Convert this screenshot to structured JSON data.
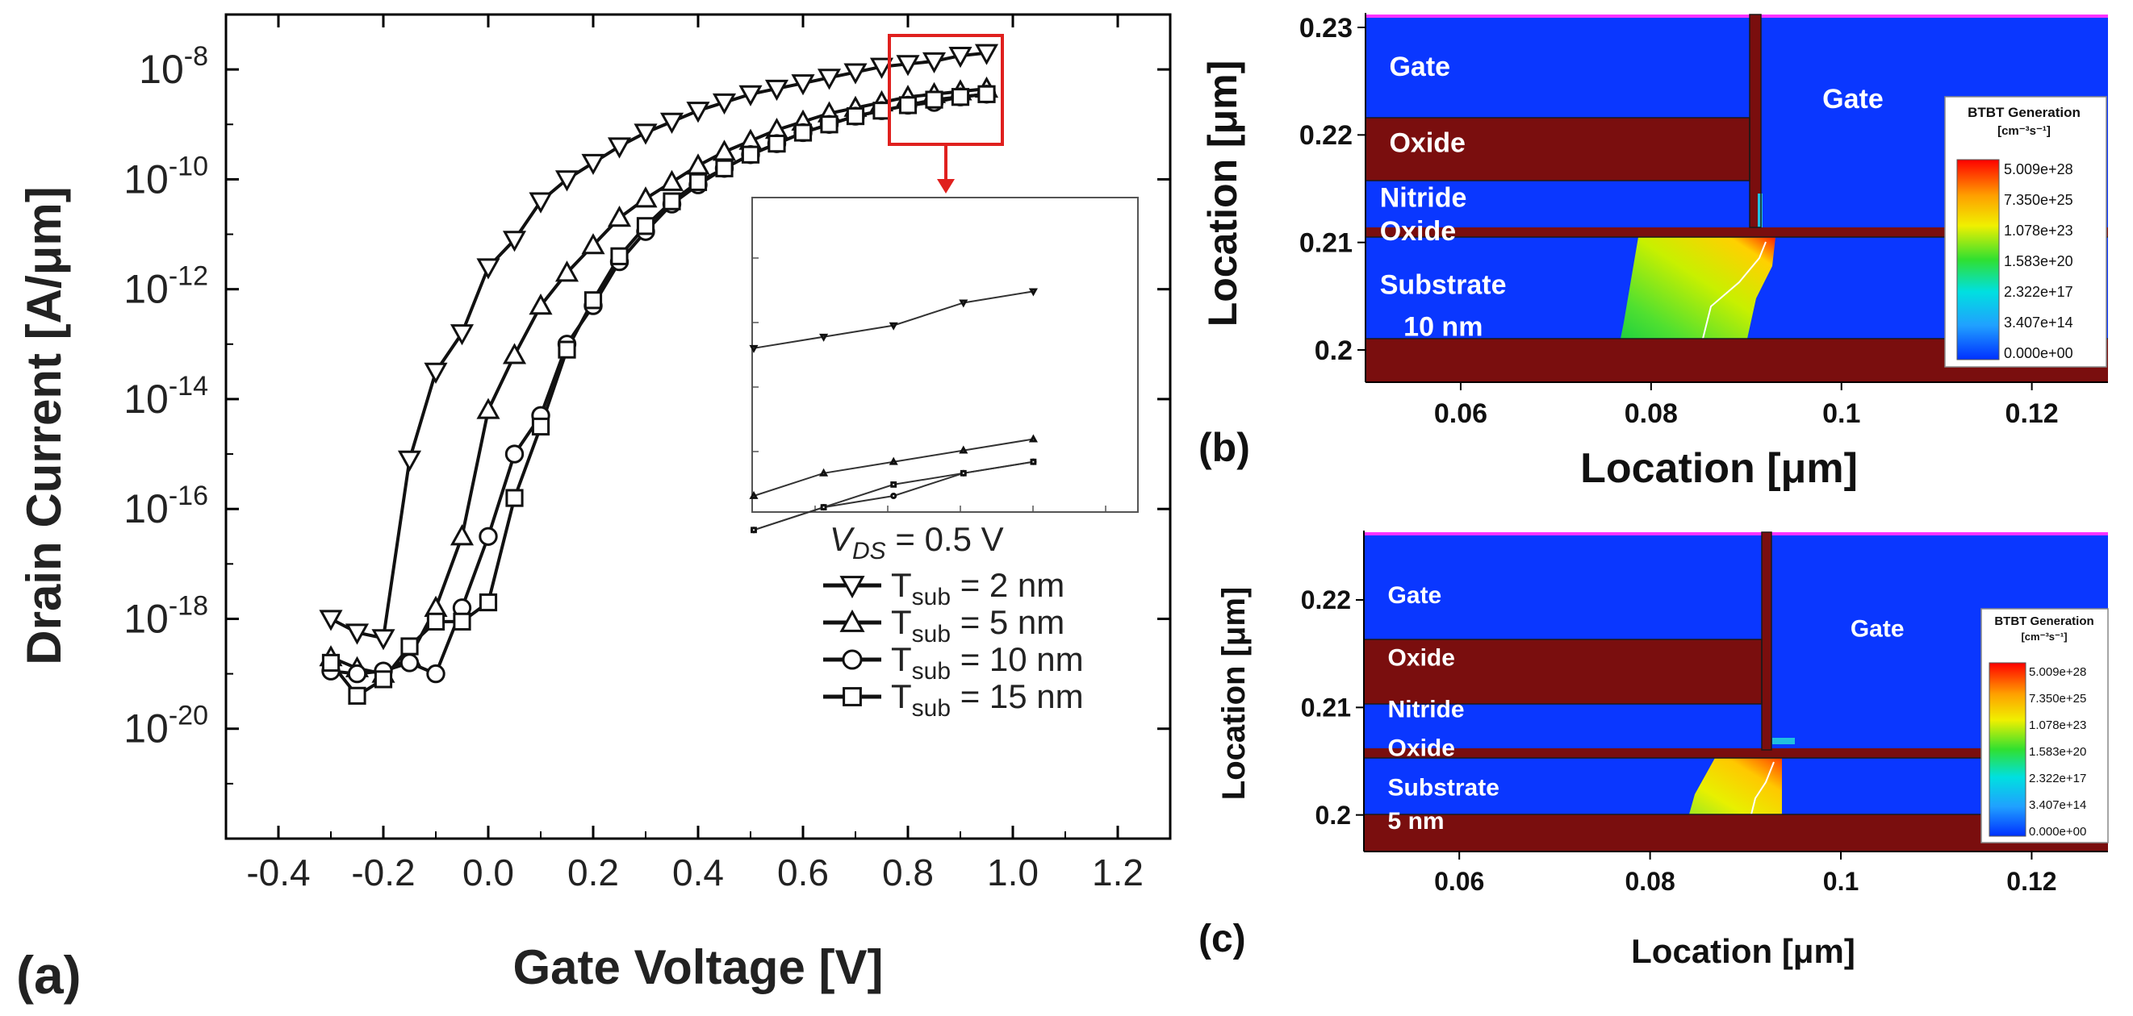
{
  "panel_labels": {
    "a": "(a)",
    "b": "(b)",
    "c": "(c)"
  },
  "colors": {
    "oxide": "#7a0e0e",
    "gate": "#0a37ff",
    "top_line": "#ff33ff"
  },
  "chart_data": [
    {
      "id": "a",
      "type": "line",
      "ylabel": "Drain Current [A/μm]",
      "xlabel": "Gate Voltage [V]",
      "xlim": [
        -0.5,
        1.3
      ],
      "ylim_exp": [
        -22,
        -7
      ],
      "log_y": true,
      "x_ticks": [
        "-0.4",
        "-0.2",
        "0.0",
        "0.2",
        "0.4",
        "0.6",
        "0.8",
        "1.0",
        "1.2"
      ],
      "x_tick_values": [
        -0.4,
        -0.2,
        0.0,
        0.2,
        0.4,
        0.6,
        0.8,
        1.0,
        1.2
      ],
      "y_ticks": [
        {
          "base": "10",
          "exp": "-8",
          "value": -8
        },
        {
          "base": "10",
          "exp": "-10",
          "value": -10
        },
        {
          "base": "10",
          "exp": "-12",
          "value": -12
        },
        {
          "base": "10",
          "exp": "-14",
          "value": -14
        },
        {
          "base": "10",
          "exp": "-16",
          "value": -16
        },
        {
          "base": "10",
          "exp": "-18",
          "value": -18
        },
        {
          "base": "10",
          "exp": "-20",
          "value": -20
        }
      ],
      "condition": {
        "prefix": "V",
        "sub": "DS",
        "suffix": " = 0.5 V"
      },
      "series": [
        {
          "name": "T_sub = 2 nm",
          "label_base": "T",
          "label_sub": "sub",
          "label_rest": " = 2 nm",
          "marker": "triangle-down",
          "x": [
            -0.3,
            -0.25,
            -0.2,
            -0.15,
            -0.1,
            -0.05,
            0.0,
            0.05,
            0.1,
            0.15,
            0.2,
            0.25,
            0.3,
            0.35,
            0.4,
            0.45,
            0.5,
            0.55,
            0.6,
            0.65,
            0.7,
            0.75,
            0.8,
            0.85,
            0.9,
            0.95
          ],
          "logy": [
            -18.0,
            -18.25,
            -18.35,
            -15.1,
            -13.5,
            -12.8,
            -11.6,
            -11.1,
            -10.4,
            -10.0,
            -9.7,
            -9.4,
            -9.15,
            -8.95,
            -8.75,
            -8.6,
            -8.45,
            -8.35,
            -8.25,
            -8.15,
            -8.05,
            -7.95,
            -7.9,
            -7.85,
            -7.75,
            -7.7
          ]
        },
        {
          "name": "T_sub = 5 nm",
          "label_base": "T",
          "label_sub": "sub",
          "label_rest": " = 5 nm",
          "marker": "triangle-up",
          "x": [
            -0.3,
            -0.25,
            -0.2,
            -0.15,
            -0.1,
            -0.05,
            0.0,
            0.05,
            0.1,
            0.15,
            0.2,
            0.25,
            0.3,
            0.35,
            0.4,
            0.45,
            0.5,
            0.55,
            0.6,
            0.65,
            0.7,
            0.75,
            0.8,
            0.85,
            0.9,
            0.95
          ],
          "logy": [
            -18.7,
            -18.9,
            -19.0,
            -18.7,
            -17.8,
            -16.5,
            -14.2,
            -13.2,
            -12.3,
            -11.7,
            -11.2,
            -10.7,
            -10.35,
            -10.05,
            -9.75,
            -9.5,
            -9.3,
            -9.1,
            -8.95,
            -8.8,
            -8.7,
            -8.6,
            -8.5,
            -8.45,
            -8.4,
            -8.35
          ]
        },
        {
          "name": "T_sub = 10 nm",
          "label_base": "T",
          "label_sub": "sub",
          "label_rest": " = 10 nm",
          "marker": "circle",
          "x": [
            -0.3,
            -0.25,
            -0.2,
            -0.15,
            -0.1,
            -0.05,
            0.0,
            0.05,
            0.1,
            0.15,
            0.2,
            0.25,
            0.3,
            0.35,
            0.4,
            0.45,
            0.5,
            0.55,
            0.6,
            0.65,
            0.7,
            0.75,
            0.8,
            0.85,
            0.9,
            0.95
          ],
          "logy": [
            -18.95,
            -19.0,
            -18.95,
            -18.8,
            -19.0,
            -17.8,
            -16.5,
            -15.0,
            -14.3,
            -13.0,
            -12.3,
            -11.5,
            -10.95,
            -10.45,
            -10.1,
            -9.8,
            -9.55,
            -9.35,
            -9.15,
            -9.0,
            -8.85,
            -8.75,
            -8.65,
            -8.6,
            -8.5,
            -8.45
          ]
        },
        {
          "name": "T_sub = 15 nm",
          "label_base": "T",
          "label_sub": "sub",
          "label_rest": " = 15 nm",
          "marker": "square",
          "x": [
            -0.3,
            -0.25,
            -0.2,
            -0.15,
            -0.1,
            -0.05,
            0.0,
            0.05,
            0.1,
            0.15,
            0.2,
            0.25,
            0.3,
            0.35,
            0.4,
            0.45,
            0.5,
            0.55,
            0.6,
            0.65,
            0.7,
            0.75,
            0.8,
            0.85,
            0.9,
            0.95
          ],
          "logy": [
            -18.8,
            -19.4,
            -19.1,
            -18.5,
            -18.05,
            -18.05,
            -17.7,
            -15.8,
            -14.5,
            -13.1,
            -12.2,
            -11.4,
            -10.85,
            -10.4,
            -10.05,
            -9.8,
            -9.55,
            -9.35,
            -9.15,
            -9.0,
            -8.85,
            -8.75,
            -8.65,
            -8.55,
            -8.5,
            -8.45
          ]
        }
      ]
    },
    {
      "id": "b",
      "type": "heatmap",
      "xlabel": "Location [μm]",
      "ylabel": "Location [μm]",
      "xlim": [
        0.05,
        0.128
      ],
      "ylim": [
        0.197,
        0.2312
      ],
      "x_ticks": [
        "0.06",
        "0.08",
        "0.1",
        "0.12"
      ],
      "x_tick_values": [
        0.06,
        0.08,
        0.1,
        0.12
      ],
      "y_ticks": [
        "0.23",
        "0.22",
        "0.21",
        "0.2"
      ],
      "y_tick_values": [
        0.23,
        0.22,
        0.21,
        0.2
      ],
      "region_labels": [
        {
          "text": "Gate",
          "x": 0.0525,
          "y": 0.2255
        },
        {
          "text": "Gate",
          "x": 0.098,
          "y": 0.2225
        },
        {
          "text": "Oxide",
          "x": 0.0525,
          "y": 0.2184
        },
        {
          "text": "Nitride",
          "x": 0.0515,
          "y": 0.2133
        },
        {
          "text": "Oxide",
          "x": 0.0515,
          "y": 0.2102
        },
        {
          "text": "Substrate",
          "x": 0.0515,
          "y": 0.2052
        },
        {
          "text": "10 nm",
          "x": 0.054,
          "y": 0.2013
        }
      ],
      "legend": {
        "title": "BTBT Generation",
        "units": "[cm⁻³s⁻¹]",
        "values": [
          "5.009e+28",
          "7.350e+25",
          "1.078e+23",
          "1.583e+20",
          "2.322e+17",
          "3.407e+14",
          "0.000e+00"
        ]
      }
    },
    {
      "id": "c",
      "type": "heatmap",
      "xlabel": "Location [μm]",
      "ylabel": "Location [μm]",
      "xlim": [
        0.05,
        0.128
      ],
      "ylim": [
        0.1966,
        0.2263
      ],
      "x_ticks": [
        "0.06",
        "0.08",
        "0.1",
        "0.12"
      ],
      "x_tick_values": [
        0.06,
        0.08,
        0.1,
        0.12
      ],
      "y_ticks": [
        "0.22",
        "0.21",
        "0.2"
      ],
      "y_tick_values": [
        0.22,
        0.21,
        0.2
      ],
      "region_labels": [
        {
          "text": "Gate",
          "x": 0.0525,
          "y": 0.2197
        },
        {
          "text": "Gate",
          "x": 0.101,
          "y": 0.2166
        },
        {
          "text": "Oxide",
          "x": 0.0525,
          "y": 0.2139
        },
        {
          "text": "Nitride",
          "x": 0.0525,
          "y": 0.2091
        },
        {
          "text": "Oxide",
          "x": 0.0525,
          "y": 0.2055
        },
        {
          "text": "Substrate",
          "x": 0.0525,
          "y": 0.2018
        },
        {
          "text": "5 nm",
          "x": 0.0525,
          "y": 0.1987
        }
      ],
      "legend": {
        "title": "BTBT Generation",
        "units": "[cm⁻³s⁻¹]",
        "values": [
          "5.009e+28",
          "7.350e+25",
          "1.078e+23",
          "1.583e+20",
          "2.322e+17",
          "3.407e+14",
          "0.000e+00"
        ]
      }
    }
  ]
}
